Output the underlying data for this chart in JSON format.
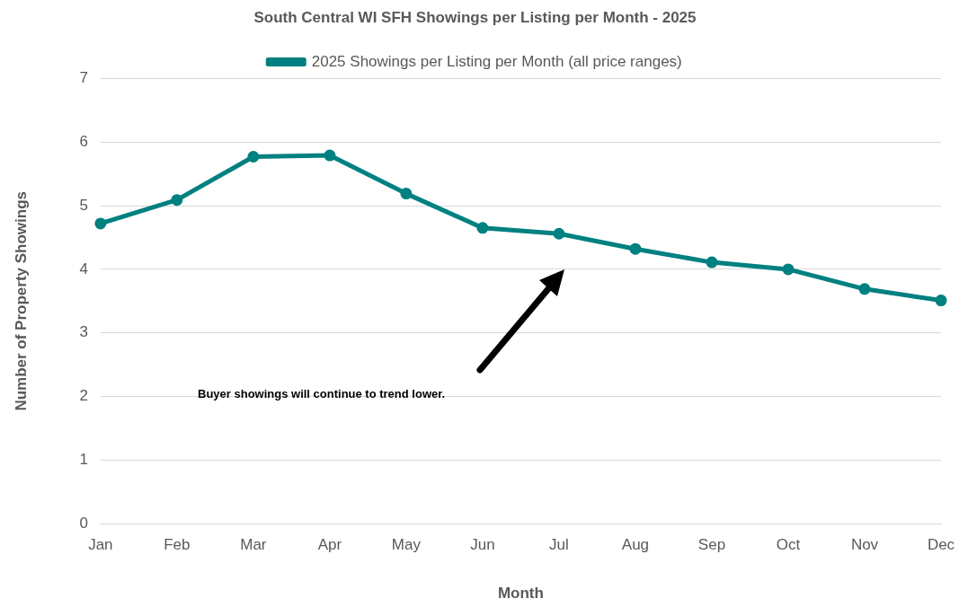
{
  "chart_data": {
    "type": "line",
    "title": "South Central WI SFH Showings per Listing per Month - 2025",
    "xlabel": "Month",
    "ylabel": "Number of Property Showings",
    "categories": [
      "Jan",
      "Feb",
      "Mar",
      "Apr",
      "May",
      "Jun",
      "Jul",
      "Aug",
      "Sep",
      "Oct",
      "Nov",
      "Dec"
    ],
    "series": [
      {
        "name": "2025 Showings per Listing per Month (all price ranges)",
        "color": "#008080",
        "values": [
          4.72,
          5.09,
          5.77,
          5.79,
          5.19,
          4.65,
          4.56,
          4.32,
          4.11,
          4.0,
          3.69,
          3.51
        ]
      }
    ],
    "ylim": [
      0,
      7
    ],
    "yticks": [
      0,
      1,
      2,
      3,
      4,
      5,
      6,
      7
    ],
    "grid": "y",
    "legend": "top",
    "marker": "circle",
    "line_style": "solid",
    "annotations": [
      "Buyer showings will continue to trend lower."
    ]
  }
}
